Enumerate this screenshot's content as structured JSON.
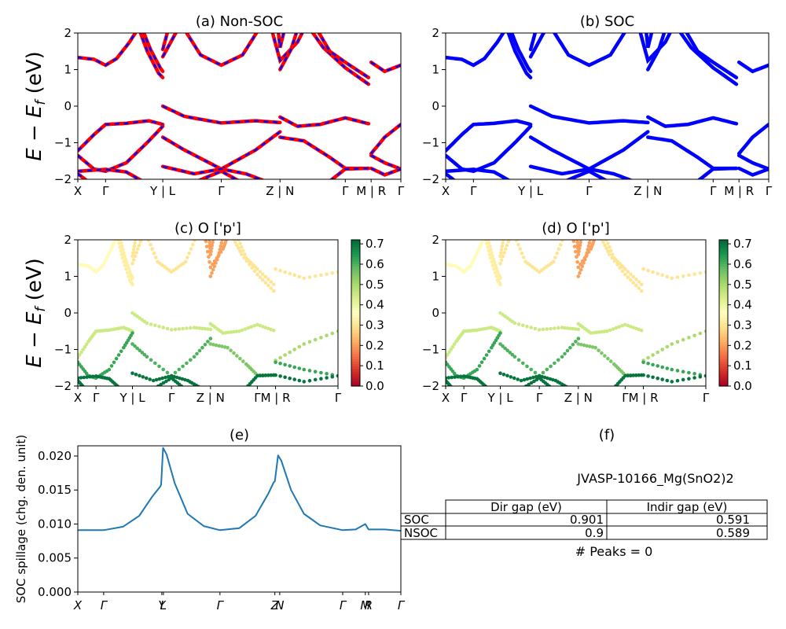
{
  "figure": {
    "formula_title": "JVASP-10166_Mg(SnO2)2",
    "peaks_text": "# Peaks = 0"
  },
  "colors": {
    "nonsoc_line": "#ff0000",
    "nonsoc_dash": "#0000ff",
    "soc_line": "#0000ff",
    "spillage_line": "#1f77b4",
    "cmap": [
      "#a50026",
      "#d73027",
      "#f46d43",
      "#fdae61",
      "#fee08b",
      "#ffffbf",
      "#d9ef8b",
      "#a6d96a",
      "#66bd63",
      "#1a9850",
      "#006837"
    ]
  },
  "bands_common": {
    "ylabel": "E − E",
    "ylabel_sub": "f",
    "ylabel_unit": " (eV)",
    "yticks": [
      "2",
      "1",
      "0",
      "−1",
      "−2"
    ],
    "xticks": [
      "X",
      "Γ",
      "Y | L",
      "Γ",
      "Z | N",
      "Γ",
      "M | R",
      "Γ"
    ],
    "xticks_proj": [
      "X",
      "Γ",
      "Y | L",
      "Γ",
      "Z | N",
      "Γ",
      "M | R",
      "Γ"
    ],
    "colorbar_ticks": [
      "0.7",
      "0.6",
      "0.5",
      "0.4",
      "0.3",
      "0.2",
      "0.1",
      "0.0"
    ]
  },
  "chart_data": [
    {
      "id": "a",
      "type": "line",
      "title": "(a) Non-SOC",
      "ylim": [
        -2,
        2
      ],
      "x_ticks": [
        0,
        0.086,
        0.263,
        0.444,
        0.626,
        0.828,
        0.908,
        1.0
      ],
      "x_tick_labels": [
        "X",
        "Γ",
        "Y | L",
        "Γ",
        "Z | N",
        "Γ",
        "M | R",
        "Γ"
      ],
      "series": [
        {
          "segment": [
            0.0,
            0.263
          ],
          "points": [
            [
              0.0,
              1.33
            ],
            [
              0.05,
              1.28
            ],
            [
              0.086,
              1.12
            ],
            [
              0.12,
              1.3
            ],
            [
              0.16,
              1.75
            ],
            [
              0.185,
              2.1
            ]
          ]
        },
        {
          "segment": [
            0.0,
            0.263
          ],
          "points": [
            [
              0.19,
              2.1
            ],
            [
              0.215,
              1.5
            ],
            [
              0.25,
              0.9
            ],
            [
              0.263,
              0.78
            ]
          ]
        },
        {
          "segment": [
            0.0,
            0.263
          ],
          "points": [
            [
              0.2,
              2.1
            ],
            [
              0.225,
              1.55
            ],
            [
              0.255,
              1.05
            ],
            [
              0.263,
              0.95
            ]
          ]
        },
        {
          "segment": [
            0.0,
            0.263
          ],
          "points": [
            [
              0.0,
              -1.22
            ],
            [
              0.05,
              -0.78
            ],
            [
              0.086,
              -0.5
            ],
            [
              0.15,
              -0.47
            ],
            [
              0.22,
              -0.4
            ],
            [
              0.263,
              -0.5
            ]
          ]
        },
        {
          "segment": [
            0.0,
            0.263
          ],
          "points": [
            [
              0.0,
              -1.35
            ],
            [
              0.05,
              -1.72
            ],
            [
              0.086,
              -1.78
            ],
            [
              0.15,
              -1.55
            ],
            [
              0.22,
              -0.95
            ],
            [
              0.263,
              -0.55
            ]
          ]
        },
        {
          "segment": [
            0.0,
            0.263
          ],
          "points": [
            [
              0.0,
              -1.78
            ],
            [
              0.086,
              -1.73
            ],
            [
              0.15,
              -1.8
            ],
            [
              0.2,
              -2.05
            ]
          ]
        },
        {
          "segment": [
            0.0,
            0.263
          ],
          "points": [
            [
              0.0,
              -1.85
            ],
            [
              0.03,
              -2.05
            ]
          ]
        },
        {
          "segment": [
            0.263,
            0.626
          ],
          "points": [
            [
              0.263,
              1.35
            ],
            [
              0.3,
              1.95
            ],
            [
              0.31,
              2.1
            ]
          ]
        },
        {
          "segment": [
            0.263,
            0.626
          ],
          "points": [
            [
              0.263,
              1.55
            ],
            [
              0.28,
              2.1
            ]
          ]
        },
        {
          "segment": [
            0.263,
            0.626
          ],
          "points": [
            [
              0.33,
              2.1
            ],
            [
              0.38,
              1.4
            ],
            [
              0.444,
              1.12
            ],
            [
              0.51,
              1.4
            ],
            [
              0.56,
              2.1
            ]
          ]
        },
        {
          "segment": [
            0.263,
            0.626
          ],
          "points": [
            [
              0.263,
              0.0
            ],
            [
              0.33,
              -0.28
            ],
            [
              0.444,
              -0.46
            ],
            [
              0.55,
              -0.4
            ],
            [
              0.626,
              -0.45
            ]
          ]
        },
        {
          "segment": [
            0.263,
            0.626
          ],
          "points": [
            [
              0.263,
              -0.85
            ],
            [
              0.33,
              -1.2
            ],
            [
              0.444,
              -1.72
            ],
            [
              0.55,
              -1.2
            ],
            [
              0.626,
              -0.7
            ]
          ]
        },
        {
          "segment": [
            0.263,
            0.626
          ],
          "points": [
            [
              0.263,
              -1.65
            ],
            [
              0.36,
              -1.85
            ],
            [
              0.444,
              -1.72
            ],
            [
              0.52,
              -1.85
            ],
            [
              0.58,
              -2.05
            ]
          ]
        },
        {
          "segment": [
            0.263,
            0.626
          ],
          "points": [
            [
              0.37,
              -2.05
            ],
            [
              0.444,
              -1.78
            ],
            [
              0.5,
              -2.05
            ]
          ]
        },
        {
          "segment": [
            0.626,
            0.908
          ],
          "points": [
            [
              0.6,
              2.1
            ],
            [
              0.626,
              1.25
            ],
            [
              0.68,
              1.75
            ],
            [
              0.7,
              2.1
            ]
          ]
        },
        {
          "segment": [
            0.626,
            0.908
          ],
          "points": [
            [
              0.626,
              1.0
            ],
            [
              0.66,
              1.55
            ],
            [
              0.68,
              2.1
            ]
          ]
        },
        {
          "segment": [
            0.626,
            0.908
          ],
          "points": [
            [
              0.62,
              2.1
            ],
            [
              0.626,
              1.6
            ],
            [
              0.64,
              2.1
            ]
          ]
        },
        {
          "segment": [
            0.626,
            0.908
          ],
          "points": [
            [
              0.72,
              2.1
            ],
            [
              0.76,
              1.6
            ],
            [
              0.828,
              1.05
            ],
            [
              0.9,
              0.6
            ]
          ]
        },
        {
          "segment": [
            0.626,
            0.908
          ],
          "points": [
            [
              0.74,
              2.1
            ],
            [
              0.78,
              1.5
            ],
            [
              0.828,
              1.2
            ],
            [
              0.9,
              0.78
            ]
          ]
        },
        {
          "segment": [
            0.626,
            0.908
          ],
          "points": [
            [
              0.626,
              -0.3
            ],
            [
              0.68,
              -0.55
            ],
            [
              0.75,
              -0.5
            ],
            [
              0.828,
              -0.32
            ],
            [
              0.9,
              -0.48
            ]
          ]
        },
        {
          "segment": [
            0.626,
            0.908
          ],
          "points": [
            [
              0.626,
              -0.85
            ],
            [
              0.7,
              -0.95
            ],
            [
              0.78,
              -1.4
            ],
            [
              0.828,
              -1.7
            ],
            [
              0.9,
              -1.7
            ]
          ]
        },
        {
          "segment": [
            0.626,
            0.908
          ],
          "points": [
            [
              0.78,
              -2.05
            ],
            [
              0.828,
              -1.72
            ],
            [
              0.9,
              -1.7
            ]
          ]
        },
        {
          "segment": [
            0.908,
            1.0
          ],
          "points": [
            [
              0.908,
              1.2
            ],
            [
              0.95,
              0.95
            ],
            [
              1.0,
              1.12
            ]
          ]
        },
        {
          "segment": [
            0.908,
            1.0
          ],
          "points": [
            [
              0.908,
              -1.3
            ],
            [
              0.95,
              -0.85
            ],
            [
              1.0,
              -0.5
            ]
          ]
        },
        {
          "segment": [
            0.908,
            1.0
          ],
          "points": [
            [
              0.908,
              -1.35
            ],
            [
              0.95,
              -1.55
            ],
            [
              1.0,
              -1.72
            ]
          ]
        },
        {
          "segment": [
            0.908,
            1.0
          ],
          "points": [
            [
              0.908,
              -1.7
            ],
            [
              0.95,
              -1.88
            ],
            [
              1.0,
              -1.72
            ]
          ]
        }
      ]
    },
    {
      "id": "b",
      "type": "line",
      "title": "(b) SOC",
      "ylim": [
        -2,
        2
      ],
      "x_ticks": [
        0,
        0.086,
        0.263,
        0.444,
        0.626,
        0.828,
        0.908,
        1.0
      ],
      "x_tick_labels": [
        "X",
        "Γ",
        "Y | L",
        "Γ",
        "Z | N",
        "Γ",
        "M | R",
        "Γ"
      ]
    },
    {
      "id": "c",
      "type": "scatter",
      "title": "(c)  O ['p']",
      "ylim": [
        -2,
        2
      ],
      "clim": [
        0.0,
        0.72
      ],
      "x_ticks": [
        0,
        0.07,
        0.21,
        0.36,
        0.51,
        0.69,
        0.76,
        1.0
      ],
      "x_tick_labels": [
        "X",
        "Γ",
        "Y | L",
        "Γ",
        "Z | N",
        "Γ",
        "M | R",
        "Γ"
      ],
      "weights_by_band": [
        0.35,
        0.32,
        0.32,
        0.45,
        0.62,
        0.7,
        0.7,
        0.3,
        0.3,
        0.3,
        0.45,
        0.6,
        0.7,
        0.7,
        0.2,
        0.2,
        0.2,
        0.3,
        0.3,
        0.45,
        0.55,
        0.7,
        0.3,
        0.5,
        0.62,
        0.7
      ]
    },
    {
      "id": "d",
      "type": "scatter",
      "title": "(d) O ['p']",
      "ylim": [
        -2,
        2
      ],
      "clim": [
        0.0,
        0.72
      ],
      "x_ticks": [
        0,
        0.07,
        0.21,
        0.36,
        0.51,
        0.69,
        0.76,
        1.0
      ],
      "x_tick_labels": [
        "X",
        "Γ",
        "Y | L",
        "Γ",
        "Z | N",
        "Γ",
        "M | R",
        "Γ"
      ]
    },
    {
      "id": "e",
      "type": "line",
      "title": "(e)",
      "ylabel": "SOC spillage (chg. den. unit)",
      "ylim": [
        0,
        0.0215
      ],
      "yticks": [
        0.0,
        0.005,
        0.01,
        0.015,
        0.02
      ],
      "ytick_labels": [
        "0.000",
        "0.005",
        "0.010",
        "0.015",
        "0.020"
      ],
      "x_ticks": [
        0,
        0.08,
        0.26,
        0.265,
        0.44,
        0.61,
        0.625,
        0.82,
        0.89,
        0.9,
        1.0
      ],
      "x_tick_labels": [
        "X",
        "Γ",
        "Y",
        "L",
        "Γ",
        "Z",
        "N",
        "Γ",
        "M",
        "R",
        "Γ"
      ],
      "points": [
        [
          0.0,
          0.0091
        ],
        [
          0.08,
          0.0091
        ],
        [
          0.14,
          0.0096
        ],
        [
          0.19,
          0.0112
        ],
        [
          0.23,
          0.014
        ],
        [
          0.255,
          0.0155
        ],
        [
          0.258,
          0.0158
        ],
        [
          0.264,
          0.0212
        ],
        [
          0.275,
          0.0202
        ],
        [
          0.3,
          0.016
        ],
        [
          0.34,
          0.0115
        ],
        [
          0.39,
          0.0097
        ],
        [
          0.44,
          0.0091
        ],
        [
          0.5,
          0.0094
        ],
        [
          0.55,
          0.0112
        ],
        [
          0.59,
          0.0145
        ],
        [
          0.606,
          0.0161
        ],
        [
          0.61,
          0.0163
        ],
        [
          0.62,
          0.0201
        ],
        [
          0.63,
          0.0193
        ],
        [
          0.66,
          0.015
        ],
        [
          0.7,
          0.0115
        ],
        [
          0.75,
          0.0098
        ],
        [
          0.82,
          0.0091
        ],
        [
          0.86,
          0.0092
        ],
        [
          0.89,
          0.01
        ],
        [
          0.9,
          0.0092
        ],
        [
          0.95,
          0.0092
        ],
        [
          1.0,
          0.009
        ]
      ]
    },
    {
      "id": "f",
      "type": "table",
      "title": "(f)",
      "columns": [
        "",
        "Dir gap (eV)",
        "Indir gap (eV)"
      ],
      "rows": [
        [
          "SOC",
          "0.901",
          "0.591"
        ],
        [
          "NSOC",
          "0.9",
          "0.589"
        ]
      ]
    }
  ]
}
